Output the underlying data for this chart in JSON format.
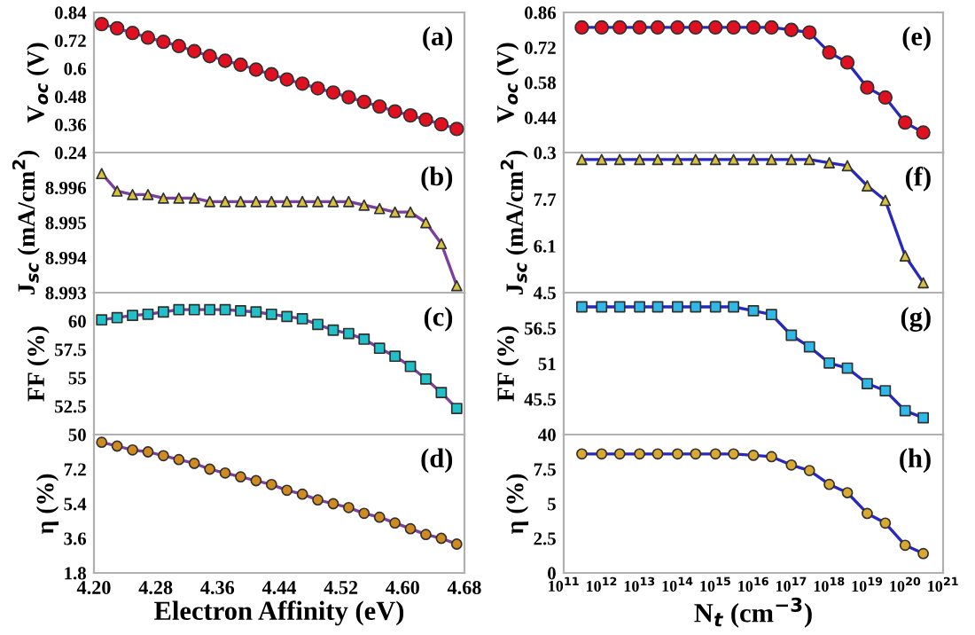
{
  "chart_data": [
    {
      "type": "line",
      "ylabel": "V$_{oc}$ (V)",
      "annotations": [
        "(a)"
      ],
      "marker": "circle",
      "tick_labels": "y",
      "x": [
        4.21,
        4.23,
        4.25,
        4.27,
        4.29,
        4.31,
        4.33,
        4.35,
        4.37,
        4.39,
        4.41,
        4.43,
        4.45,
        4.47,
        4.49,
        4.51,
        4.53,
        4.55,
        4.57,
        4.59,
        4.61,
        4.63,
        4.65,
        4.67
      ],
      "xlim": [
        4.2,
        4.68
      ],
      "ylim": [
        0.24,
        0.84
      ],
      "yticks": [
        0.24,
        0.36,
        0.48,
        0.6,
        0.72,
        0.84
      ],
      "series": [
        {
          "color": "#7b3fa0",
          "colors": [
            "#e01020",
            "#e01020",
            "#e01020",
            "#e01020",
            "#e01020",
            "#e01020",
            "#e01020",
            "#e01020",
            "#e01020",
            "#e01020",
            "#e01020",
            "#e01020",
            "#e01020",
            "#e01020",
            "#e01020",
            "#e01020",
            "#e01020",
            "#e01020",
            "#e01020",
            "#e01020",
            "#e01020",
            "#e01020",
            "#e01020",
            "#e01020"
          ],
          "values": [
            0.79,
            0.772,
            0.752,
            0.732,
            0.714,
            0.696,
            0.674,
            0.653,
            0.633,
            0.616,
            0.595,
            0.575,
            0.553,
            0.535,
            0.515,
            0.497,
            0.477,
            0.457,
            0.437,
            0.416,
            0.399,
            0.381,
            0.361,
            0.341
          ]
        }
      ]
    },
    {
      "type": "line",
      "ylabel": "J$_{sc}$ (mA/cm$^{2}$)",
      "annotations": [
        "(b)"
      ],
      "marker": "triangle",
      "tick_labels": "y",
      "x": [
        4.21,
        4.23,
        4.25,
        4.27,
        4.29,
        4.31,
        4.33,
        4.35,
        4.37,
        4.39,
        4.41,
        4.43,
        4.45,
        4.47,
        4.49,
        4.51,
        4.53,
        4.55,
        4.57,
        4.59,
        4.61,
        4.63,
        4.65,
        4.67
      ],
      "xlim": [
        4.2,
        4.68
      ],
      "ylim": [
        8.993,
        8.997
      ],
      "yticks": [
        8.993,
        8.994,
        8.995,
        8.996
      ],
      "series": [
        {
          "color": "#7b3fa0",
          "colors": [
            "#d8c040",
            "#d8c040",
            "#d8c040",
            "#d8c040",
            "#d8c040",
            "#d8c040",
            "#d8c040",
            "#d8c040",
            "#d8c040",
            "#d8c040",
            "#d8c040",
            "#d8c040",
            "#d8c040",
            "#d8c040",
            "#d8c040",
            "#d8c040",
            "#d8c040",
            "#d8c040",
            "#d8c040",
            "#d8c040",
            "#d8c040",
            "#d8c040",
            "#d8c040",
            "#d8c040"
          ],
          "values": [
            8.9964,
            8.9959,
            8.9958,
            8.9958,
            8.9957,
            8.9957,
            8.9957,
            8.9956,
            8.9956,
            8.9956,
            8.9956,
            8.9956,
            8.9956,
            8.9956,
            8.9956,
            8.9956,
            8.9956,
            8.9955,
            8.9954,
            8.9953,
            8.9953,
            8.995,
            8.9944,
            8.9932
          ]
        }
      ]
    },
    {
      "type": "line",
      "ylabel": "FF (%)",
      "annotations": [
        "(c)"
      ],
      "marker": "square",
      "tick_labels": "y",
      "x": [
        4.21,
        4.23,
        4.25,
        4.27,
        4.29,
        4.31,
        4.33,
        4.35,
        4.37,
        4.39,
        4.41,
        4.43,
        4.45,
        4.47,
        4.49,
        4.51,
        4.53,
        4.55,
        4.57,
        4.59,
        4.61,
        4.63,
        4.65,
        4.67
      ],
      "xlim": [
        4.2,
        4.68
      ],
      "ylim": [
        50,
        62.5
      ],
      "yticks": [
        50,
        52.5,
        55,
        57.5,
        60
      ],
      "series": [
        {
          "color": "#7b3fa0",
          "colors": [
            "#20c0c8",
            "#20c0c8",
            "#20c0c8",
            "#20c0c8",
            "#20c0c8",
            "#20c0c8",
            "#20c0c8",
            "#20c0c8",
            "#20c0c8",
            "#20c0c8",
            "#20c0c8",
            "#20c0c8",
            "#20c0c8",
            "#20c0c8",
            "#20c0c8",
            "#20c0c8",
            "#20c0c8",
            "#20c0c8",
            "#20c0c8",
            "#20c0c8",
            "#20c0c8",
            "#20c0c8",
            "#20c0c8",
            "#20c0c8"
          ],
          "values": [
            60.1,
            60.3,
            60.5,
            60.6,
            60.8,
            61.0,
            61.0,
            61.0,
            61.0,
            60.9,
            60.8,
            60.6,
            60.4,
            60.2,
            59.7,
            59.2,
            58.9,
            58.4,
            57.6,
            56.9,
            56.0,
            54.9,
            53.7,
            52.3
          ]
        }
      ]
    },
    {
      "type": "line",
      "ylabel": "η (%)",
      "xlabel": "Electron Affinity (eV)",
      "annotations": [
        "(d)"
      ],
      "marker": "circle",
      "x": [
        4.21,
        4.23,
        4.25,
        4.27,
        4.29,
        4.31,
        4.33,
        4.35,
        4.37,
        4.39,
        4.41,
        4.43,
        4.45,
        4.47,
        4.49,
        4.51,
        4.53,
        4.55,
        4.57,
        4.59,
        4.61,
        4.63,
        4.65,
        4.67
      ],
      "xlim": [
        4.2,
        4.68
      ],
      "xticks": [
        {
          "value": 4.2,
          "label": "4.20"
        },
        4.28,
        4.36,
        4.44,
        4.52,
        {
          "value": 4.6,
          "label": "4.60"
        },
        4.68
      ],
      "ylim": [
        1.8,
        9.0
      ],
      "yticks": [
        1.8,
        3.6,
        5.4,
        7.2
      ],
      "series": [
        {
          "color": "#7b3fa0",
          "colors": [
            "#d08a20",
            "#d08a20",
            "#d08a20",
            "#d08a20",
            "#d08a20",
            "#d08a20",
            "#d08a20",
            "#d08a20",
            "#d08a20",
            "#d08a20",
            "#d08a20",
            "#d08a20",
            "#d08a20",
            "#d08a20",
            "#d08a20",
            "#d08a20",
            "#d08a20",
            "#d08a20",
            "#d08a20",
            "#d08a20",
            "#d08a20",
            "#d08a20",
            "#d08a20",
            "#d08a20"
          ],
          "values": [
            8.6,
            8.4,
            8.2,
            8.1,
            7.9,
            7.7,
            7.5,
            7.2,
            7.0,
            6.8,
            6.6,
            6.4,
            6.1,
            5.9,
            5.6,
            5.4,
            5.2,
            4.9,
            4.7,
            4.4,
            4.1,
            3.8,
            3.6,
            3.3
          ]
        }
      ]
    },
    {
      "type": "line",
      "ylabel": "V$_{oc}$ (V)",
      "annotations": [
        "(e)"
      ],
      "marker": "circle",
      "tick_labels": "y",
      "log": "x",
      "x": [
        300000000000.0,
        1000000000000.0,
        3000000000000.0,
        10000000000000.0,
        30000000000000.0,
        100000000000000.0,
        300000000000000.0,
        1000000000000000.0,
        3000000000000000.0,
        1e+16,
        3e+16,
        1e+17,
        3e+17,
        1e+18,
        3e+18,
        1e+19,
        3e+19,
        1e+20,
        3e+20
      ],
      "xlim": [
        100000000000.0,
        1e+21
      ],
      "ylim": [
        0.3,
        0.86
      ],
      "yticks": [
        0.3,
        0.44,
        0.58,
        0.72,
        0.86
      ],
      "series": [
        {
          "color": "#2828c0",
          "colors": [
            "#e01020",
            "#e01020",
            "#e01020",
            "#e01020",
            "#e01020",
            "#e01020",
            "#e01020",
            "#e01020",
            "#e01020",
            "#e01020",
            "#e01020",
            "#e01020",
            "#e01020",
            "#e01020",
            "#e01020",
            "#e01020",
            "#e01020",
            "#e01020",
            "#e01020"
          ],
          "values": [
            0.8,
            0.8,
            0.8,
            0.8,
            0.8,
            0.8,
            0.8,
            0.8,
            0.8,
            0.8,
            0.8,
            0.79,
            0.78,
            0.7,
            0.66,
            0.56,
            0.52,
            0.42,
            0.38
          ]
        }
      ]
    },
    {
      "type": "line",
      "ylabel": "J$_{sc}$ (mA/cm$^{2}$)",
      "annotations": [
        "(f)"
      ],
      "marker": "triangle",
      "tick_labels": "y",
      "log": "x",
      "x": [
        300000000000.0,
        1000000000000.0,
        3000000000000.0,
        10000000000000.0,
        30000000000000.0,
        100000000000000.0,
        300000000000000.0,
        1000000000000000.0,
        3000000000000000.0,
        1e+16,
        3e+16,
        1e+17,
        3e+17,
        1e+18,
        3e+18,
        1e+19,
        3e+19,
        1e+20,
        3e+20
      ],
      "xlim": [
        100000000000.0,
        1e+21
      ],
      "ylim": [
        4.5,
        9.3
      ],
      "yticks": [
        4.5,
        6.1,
        7.7
      ],
      "series": [
        {
          "color": "#2828c0",
          "colors": [
            "#d8c040",
            "#d8c040",
            "#d8c040",
            "#d8c040",
            "#d8c040",
            "#d8c040",
            "#d8c040",
            "#d8c040",
            "#d8c040",
            "#d8c040",
            "#d8c040",
            "#d8c040",
            "#d8c040",
            "#d8c040",
            "#d8c040",
            "#d8c040",
            "#d8c040",
            "#d8c040",
            "#d8c040"
          ],
          "values": [
            9.06,
            9.06,
            9.06,
            9.06,
            9.06,
            9.06,
            9.06,
            9.06,
            9.06,
            9.06,
            9.06,
            9.06,
            9.06,
            8.95,
            8.85,
            8.16,
            7.66,
            5.76,
            4.84
          ]
        }
      ]
    },
    {
      "type": "line",
      "ylabel": "FF (%)",
      "annotations": [
        "(g)"
      ],
      "marker": "square",
      "tick_labels": "y",
      "log": "x",
      "x": [
        300000000000.0,
        1000000000000.0,
        3000000000000.0,
        10000000000000.0,
        30000000000000.0,
        100000000000000.0,
        300000000000000.0,
        1000000000000000.0,
        3000000000000000.0,
        1e+16,
        3e+16,
        1e+17,
        3e+17,
        1e+18,
        3e+18,
        1e+19,
        3e+19,
        1e+20,
        3e+20
      ],
      "xlim": [
        100000000000.0,
        1e+21
      ],
      "ylim": [
        40,
        62
      ],
      "yticks": [
        40,
        45.5,
        51,
        56.5
      ],
      "series": [
        {
          "color": "#2828c0",
          "colors": [
            "#30b8e8",
            "#30b8e8",
            "#30b8e8",
            "#30b8e8",
            "#30b8e8",
            "#30b8e8",
            "#30b8e8",
            "#30b8e8",
            "#30b8e8",
            "#30b8e8",
            "#30b8e8",
            "#30b8e8",
            "#30b8e8",
            "#30b8e8",
            "#30b8e8",
            "#30b8e8",
            "#30b8e8",
            "#30b8e8",
            "#30b8e8"
          ],
          "values": [
            59.8,
            59.8,
            59.8,
            59.8,
            59.8,
            59.8,
            59.8,
            59.8,
            59.8,
            59.2,
            58.6,
            55.4,
            53.6,
            51.1,
            50.3,
            47.9,
            46.8,
            43.7,
            42.6
          ]
        }
      ]
    },
    {
      "type": "line",
      "ylabel": "η (%)",
      "xlabel": "N$_{t}$ (cm$^{−3}$)",
      "annotations": [
        "(h)"
      ],
      "marker": "circle",
      "log": "x",
      "x": [
        300000000000.0,
        1000000000000.0,
        3000000000000.0,
        10000000000000.0,
        30000000000000.0,
        100000000000000.0,
        300000000000000.0,
        1000000000000000.0,
        3000000000000000.0,
        1e+16,
        3e+16,
        1e+17,
        3e+17,
        1e+18,
        3e+18,
        1e+19,
        3e+19,
        1e+20,
        3e+20
      ],
      "xlim": [
        100000000000.0,
        1e+21
      ],
      "xticks": [
        {
          "value": 100000000000.0,
          "label": "10$^{11}$"
        },
        {
          "value": 1000000000000.0,
          "label": "10$^{12}$"
        },
        {
          "value": 10000000000000.0,
          "label": "10$^{13}$"
        },
        {
          "value": 100000000000000.0,
          "label": "10$^{14}$"
        },
        {
          "value": 1000000000000000.0,
          "label": "10$^{15}$"
        },
        {
          "value": 1e+16,
          "label": "10$^{16}$"
        },
        {
          "value": 1e+17,
          "label": "10$^{17}$"
        },
        {
          "value": 1e+18,
          "label": "10$^{18}$"
        },
        {
          "value": 1e+19,
          "label": "10$^{19}$"
        },
        {
          "value": 1e+20,
          "label": "10$^{20}$"
        },
        {
          "value": 1e+21,
          "label": "10$^{21}$"
        }
      ],
      "ylim": [
        0,
        10
      ],
      "yticks": [
        0,
        2.5,
        5,
        7.5
      ],
      "series": [
        {
          "color": "#2828c0",
          "colors": [
            "#d8a830",
            "#d8a830",
            "#d8a830",
            "#d8a830",
            "#d8a830",
            "#d8a830",
            "#d8a830",
            "#d8a830",
            "#d8a830",
            "#d8a830",
            "#d8a830",
            "#d8a830",
            "#d8a830",
            "#d8a830",
            "#d8a830",
            "#d8a830",
            "#d8a830",
            "#d8a830",
            "#d8a830"
          ],
          "values": [
            8.6,
            8.6,
            8.6,
            8.6,
            8.6,
            8.6,
            8.6,
            8.6,
            8.6,
            8.5,
            8.4,
            7.8,
            7.4,
            6.4,
            5.8,
            4.3,
            3.6,
            2.0,
            1.4
          ]
        }
      ]
    }
  ]
}
